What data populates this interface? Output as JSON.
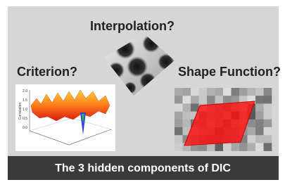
{
  "labels": {
    "interpolation": "Interpolation?",
    "criterion": "Criterion?",
    "shape_function": "Shape Function?"
  },
  "criterion_plot": {
    "axis_label": "Correlation",
    "ticks": [
      "2.0",
      "1.5",
      "1.0",
      "0.5",
      "0.0"
    ]
  },
  "footer": {
    "caption": "The 3 hidden components of DIC"
  }
}
